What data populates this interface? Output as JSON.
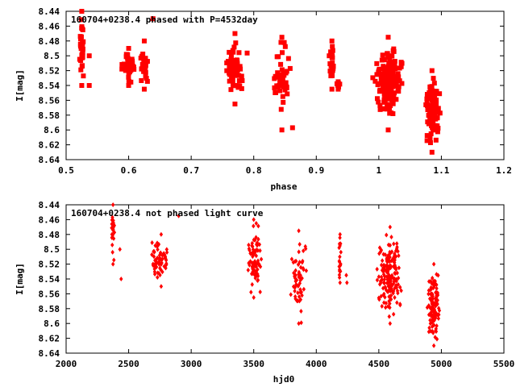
{
  "chart_data": [
    {
      "type": "scatter",
      "title": "160704+0238.4 phased with P=4532day",
      "xlabel": "phase",
      "ylabel": "I[mag]",
      "xlim": [
        0.5,
        1.2
      ],
      "ylim": [
        8.64,
        8.44
      ],
      "y_inverted": true,
      "xticks": [
        "0.5",
        "0.6",
        "0.7",
        "0.8",
        "0.9",
        "1",
        "1.1",
        "1.2"
      ],
      "yticks": [
        "8.44",
        "8.46",
        "8.48",
        "8.5",
        "8.52",
        "8.54",
        "8.56",
        "8.58",
        "8.6",
        "8.62",
        "8.64"
      ],
      "marker": "filled-square",
      "color": "#ff0000",
      "grid": false,
      "clusters": [
        {
          "x_center": 0.525,
          "x_spread": 0.006,
          "y_min": 8.44,
          "y_max": 8.54,
          "count": 30
        },
        {
          "x_center": 0.6,
          "x_spread": 0.012,
          "y_min": 8.49,
          "y_max": 8.54,
          "count": 45
        },
        {
          "x_center": 0.625,
          "x_spread": 0.01,
          "y_min": 8.48,
          "y_max": 8.545,
          "count": 22
        },
        {
          "x_center": 0.77,
          "x_spread": 0.02,
          "y_min": 8.47,
          "y_max": 8.565,
          "count": 65
        },
        {
          "x_center": 0.845,
          "x_spread": 0.018,
          "y_min": 8.475,
          "y_max": 8.6,
          "count": 50
        },
        {
          "x_center": 0.925,
          "x_spread": 0.006,
          "y_min": 8.48,
          "y_max": 8.545,
          "count": 20
        },
        {
          "x_center": 0.935,
          "x_spread": 0.004,
          "y_min": 8.535,
          "y_max": 8.545,
          "count": 6
        },
        {
          "x_center": 1.015,
          "x_spread": 0.028,
          "y_min": 8.475,
          "y_max": 8.6,
          "count": 170
        },
        {
          "x_center": 1.085,
          "x_spread": 0.015,
          "y_min": 8.52,
          "y_max": 8.63,
          "count": 110
        }
      ],
      "points": [
        {
          "x": 0.537,
          "y": 8.54
        },
        {
          "x": 0.537,
          "y": 8.5
        },
        {
          "x": 0.639,
          "y": 8.45
        },
        {
          "x": 0.862,
          "y": 8.597
        }
      ]
    },
    {
      "type": "scatter",
      "title": "160704+0238.4 not phased light curve",
      "xlabel": "hjd0",
      "ylabel": "I[mag]",
      "xlim": [
        2000,
        5500
      ],
      "ylim": [
        8.64,
        8.44
      ],
      "y_inverted": true,
      "xticks": [
        "2000",
        "2500",
        "3000",
        "3500",
        "4000",
        "4500",
        "5000",
        "5500"
      ],
      "yticks": [
        "8.44",
        "8.46",
        "8.48",
        "8.5",
        "8.52",
        "8.54",
        "8.56",
        "8.58",
        "8.6",
        "8.62",
        "8.64"
      ],
      "marker": "small-diamond",
      "color": "#ff0000",
      "grid": false,
      "clusters": [
        {
          "x_center": 2375,
          "x_spread": 20,
          "y_min": 8.44,
          "y_max": 8.52,
          "count": 30
        },
        {
          "x_center": 2760,
          "x_spread": 110,
          "y_min": 8.48,
          "y_max": 8.55,
          "count": 65
        },
        {
          "x_center": 3500,
          "x_spread": 80,
          "y_min": 8.46,
          "y_max": 8.565,
          "count": 70
        },
        {
          "x_center": 3860,
          "x_spread": 90,
          "y_min": 8.475,
          "y_max": 8.6,
          "count": 55
        },
        {
          "x_center": 4190,
          "x_spread": 15,
          "y_min": 8.48,
          "y_max": 8.545,
          "count": 20
        },
        {
          "x_center": 4590,
          "x_spread": 130,
          "y_min": 8.47,
          "y_max": 8.6,
          "count": 175
        },
        {
          "x_center": 4940,
          "x_spread": 60,
          "y_min": 8.52,
          "y_max": 8.63,
          "count": 110
        }
      ],
      "points": [
        {
          "x": 2430,
          "y": 8.5
        },
        {
          "x": 2440,
          "y": 8.54
        },
        {
          "x": 2900,
          "y": 8.455
        },
        {
          "x": 3520,
          "y": 8.465
        },
        {
          "x": 3880,
          "y": 8.599
        },
        {
          "x": 4240,
          "y": 8.535
        },
        {
          "x": 4245,
          "y": 8.545
        }
      ]
    }
  ]
}
